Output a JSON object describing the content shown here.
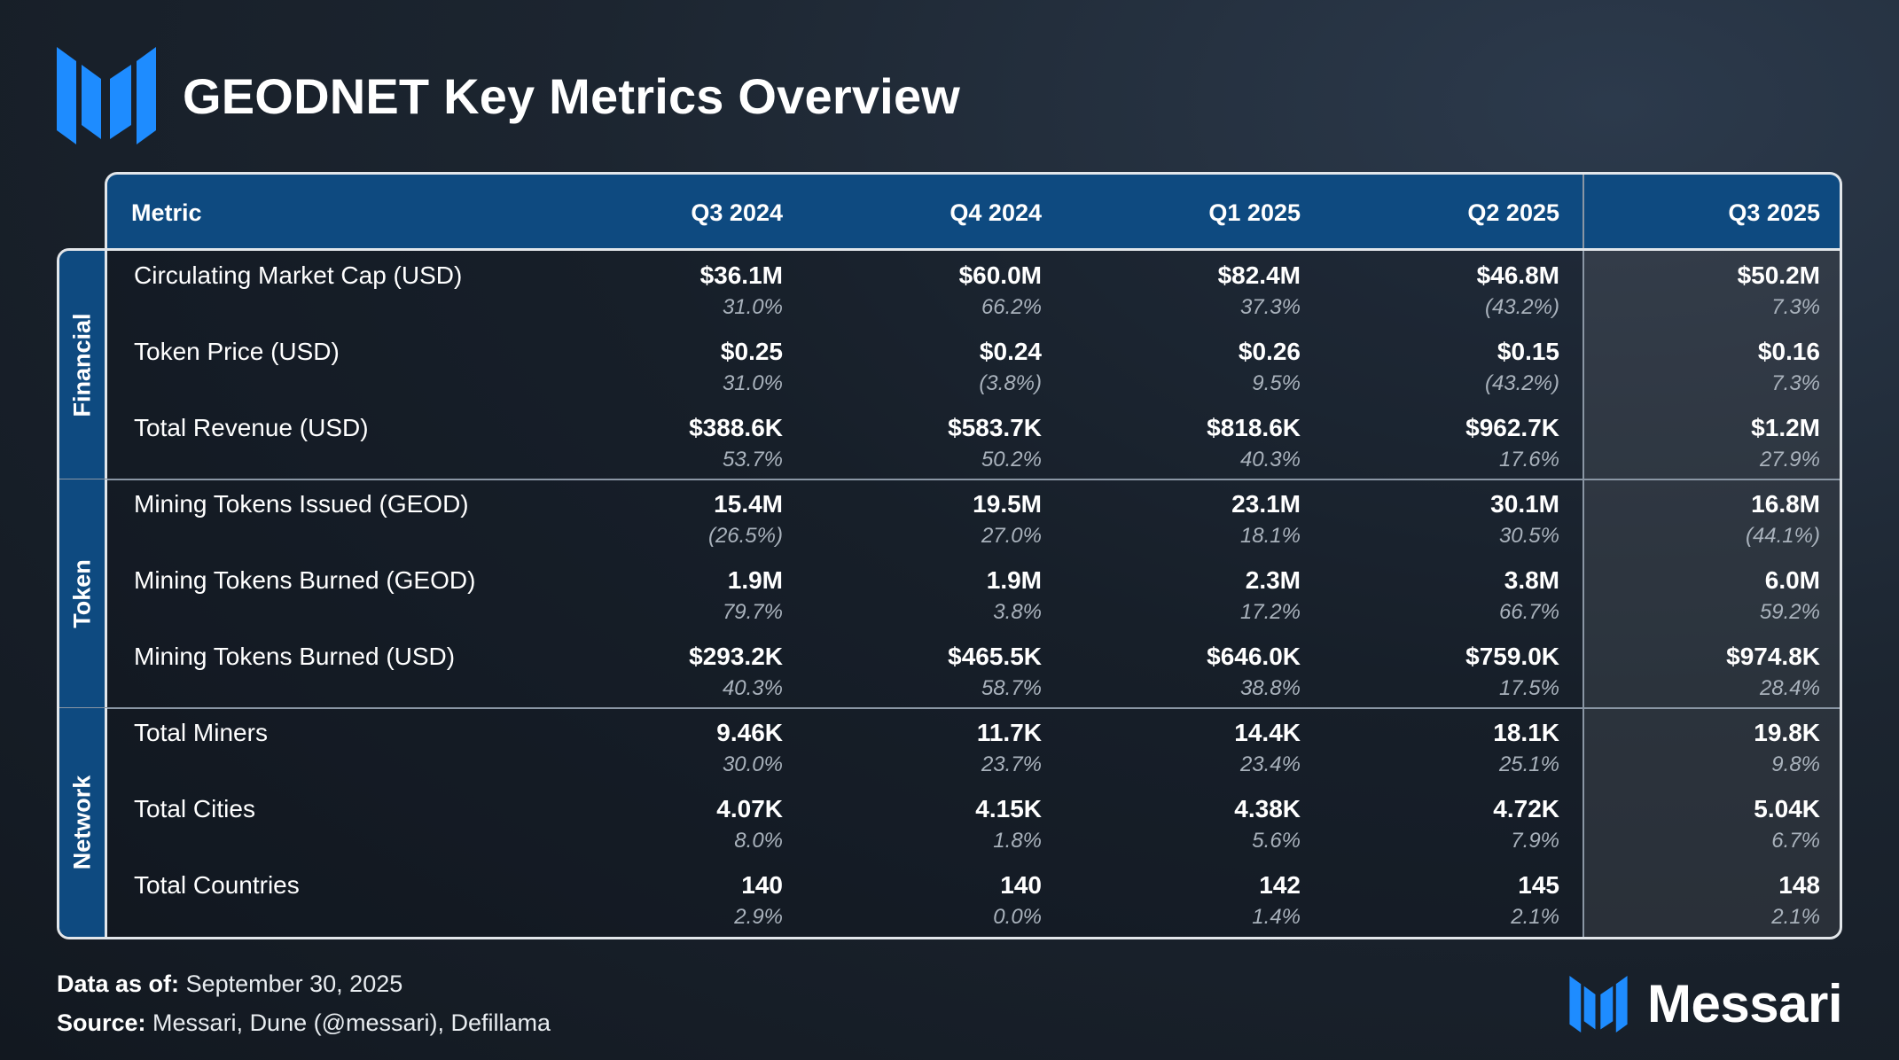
{
  "title": "GEODNET Key Metrics Overview",
  "brand": {
    "name": "Messari",
    "icon": "messari-logo-icon",
    "accent": "#1e8cff"
  },
  "colors": {
    "header_bg": "#0e4a80",
    "positive_text": "#ffffff",
    "change_text": "#a9b2bc"
  },
  "footer": {
    "date_label": "Data as of:",
    "date_value": "September 30, 2025",
    "source_label": "Source:",
    "source_value": "Messari, Dune (@messari), Defillama"
  },
  "chart_data": {
    "type": "table",
    "columns": [
      "Metric",
      "Q3 2024",
      "Q4 2024",
      "Q1 2025",
      "Q2 2025",
      "Q3 2025"
    ],
    "groups": [
      {
        "name": "Financial",
        "rows": [
          {
            "metric": "Circulating Market Cap (USD)",
            "values": [
              "$36.1M",
              "$60.0M",
              "$82.4M",
              "$46.8M",
              "$50.2M"
            ],
            "changes": [
              "31.0%",
              "66.2%",
              "37.3%",
              "(43.2%)",
              "7.3%"
            ]
          },
          {
            "metric": "Token Price (USD)",
            "values": [
              "$0.25",
              "$0.24",
              "$0.26",
              "$0.15",
              "$0.16"
            ],
            "changes": [
              "31.0%",
              "(3.8%)",
              "9.5%",
              "(43.2%)",
              "7.3%"
            ]
          },
          {
            "metric": "Total Revenue (USD)",
            "values": [
              "$388.6K",
              "$583.7K",
              "$818.6K",
              "$962.7K",
              "$1.2M"
            ],
            "changes": [
              "53.7%",
              "50.2%",
              "40.3%",
              "17.6%",
              "27.9%"
            ]
          }
        ]
      },
      {
        "name": "Token",
        "rows": [
          {
            "metric": "Mining Tokens Issued (GEOD)",
            "values": [
              "15.4M",
              "19.5M",
              "23.1M",
              "30.1M",
              "16.8M"
            ],
            "changes": [
              "(26.5%)",
              "27.0%",
              "18.1%",
              "30.5%",
              "(44.1%)"
            ]
          },
          {
            "metric": "Mining Tokens Burned (GEOD)",
            "values": [
              "1.9M",
              "1.9M",
              "2.3M",
              "3.8M",
              "6.0M"
            ],
            "changes": [
              "79.7%",
              "3.8%",
              "17.2%",
              "66.7%",
              "59.2%"
            ]
          },
          {
            "metric": "Mining Tokens Burned (USD)",
            "values": [
              "$293.2K",
              "$465.5K",
              "$646.0K",
              "$759.0K",
              "$974.8K"
            ],
            "changes": [
              "40.3%",
              "58.7%",
              "38.8%",
              "17.5%",
              "28.4%"
            ]
          }
        ]
      },
      {
        "name": "Network",
        "rows": [
          {
            "metric": "Total Miners",
            "values": [
              "9.46K",
              "11.7K",
              "14.4K",
              "18.1K",
              "19.8K"
            ],
            "changes": [
              "30.0%",
              "23.7%",
              "23.4%",
              "25.1%",
              "9.8%"
            ]
          },
          {
            "metric": "Total Cities",
            "values": [
              "4.07K",
              "4.15K",
              "4.38K",
              "4.72K",
              "5.04K"
            ],
            "changes": [
              "8.0%",
              "1.8%",
              "5.6%",
              "7.9%",
              "6.7%"
            ]
          },
          {
            "metric": "Total Countries",
            "values": [
              "140",
              "140",
              "142",
              "145",
              "148"
            ],
            "changes": [
              "2.9%",
              "0.0%",
              "1.4%",
              "2.1%",
              "2.1%"
            ]
          }
        ]
      }
    ]
  }
}
